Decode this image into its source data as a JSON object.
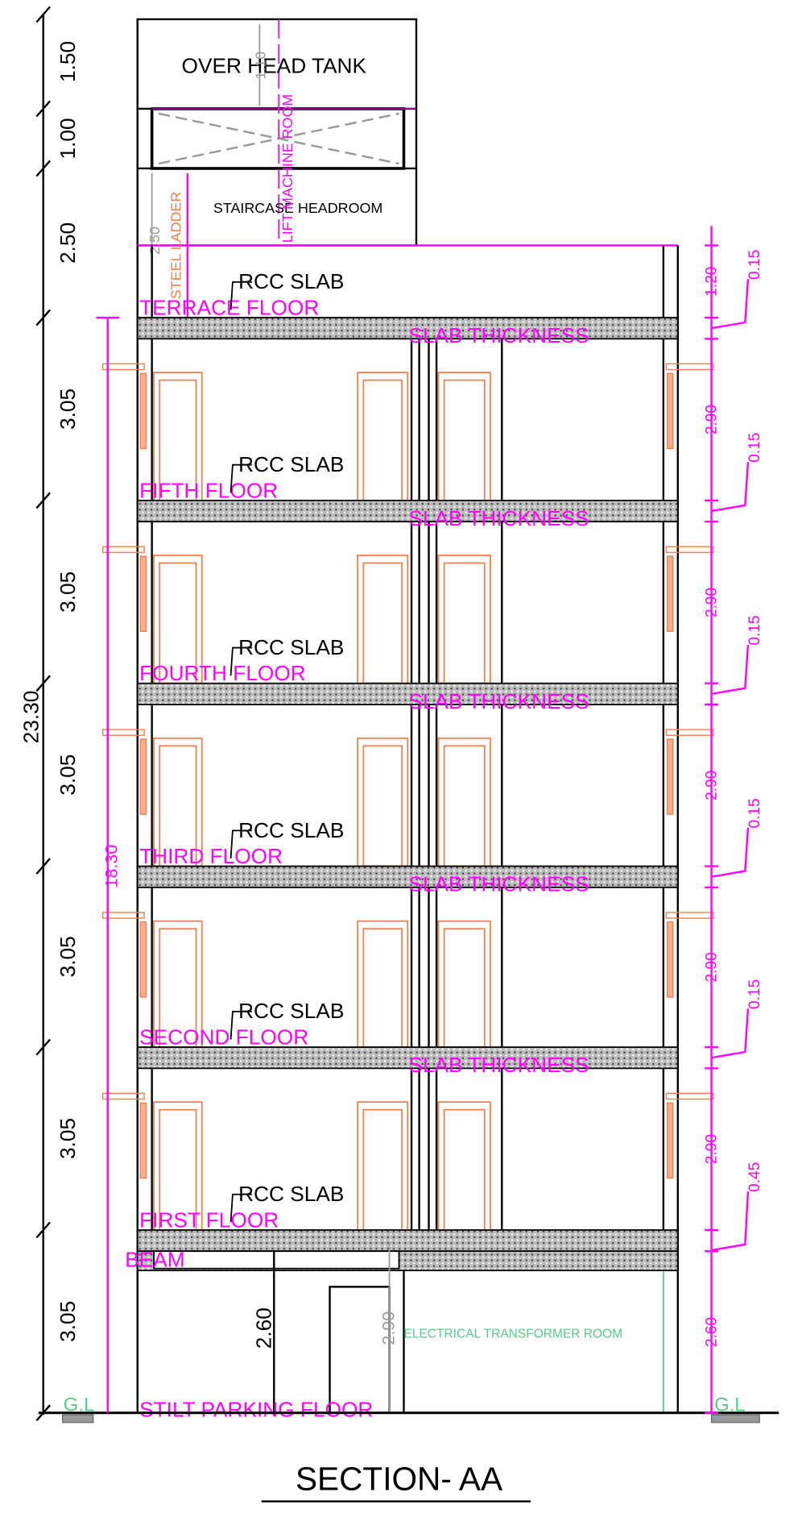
{
  "title": "SECTION- AA",
  "top": {
    "tank": "OVER HEAD TANK",
    "headroom": "STAIRCASE HEADROOM",
    "lift": "LIFT MACHINE ROOM",
    "ladder": "STEEL LADDER",
    "ladder_dim": "2.50",
    "tank_dim": "1.10"
  },
  "floors": [
    {
      "name": "TERRACE FLOOR",
      "rcc": "RCC SLAB",
      "slab": "SLAB THICKNESS"
    },
    {
      "name": "FIFTH FLOOR",
      "rcc": "RCC SLAB",
      "slab": "SLAB THICKNESS"
    },
    {
      "name": "FOURTH FLOOR",
      "rcc": "RCC SLAB",
      "slab": "SLAB THICKNESS"
    },
    {
      "name": "THIRD FLOOR",
      "rcc": "RCC SLAB",
      "slab": "SLAB THICKNESS"
    },
    {
      "name": "SECOND FLOOR",
      "rcc": "RCC SLAB",
      "slab": "SLAB THICKNESS"
    },
    {
      "name": "FIRST FLOOR",
      "rcc": "RCC SLAB"
    }
  ],
  "beam": "BEAM",
  "stilt": "STILT PARKING FLOOR",
  "transformer": "ELECTRICAL TRANSFORMER ROOM",
  "gl": [
    "G.L",
    "G.L"
  ],
  "left_dims": [
    "1.50",
    "1.00",
    "2.50",
    "3.05",
    "3.05",
    "3.05",
    "3.05",
    "3.05",
    "3.05"
  ],
  "total": "23.30",
  "sub_total": "18.30",
  "stilt_dims": [
    "2.60",
    "2.90"
  ],
  "right_dims": {
    "clear": [
      "1.20",
      "2.90",
      "2.90",
      "2.90",
      "2.90",
      "2.90",
      "2.60"
    ],
    "slab": [
      "0.15",
      "0.15",
      "0.15",
      "0.15",
      "0.15",
      "0.45"
    ]
  }
}
